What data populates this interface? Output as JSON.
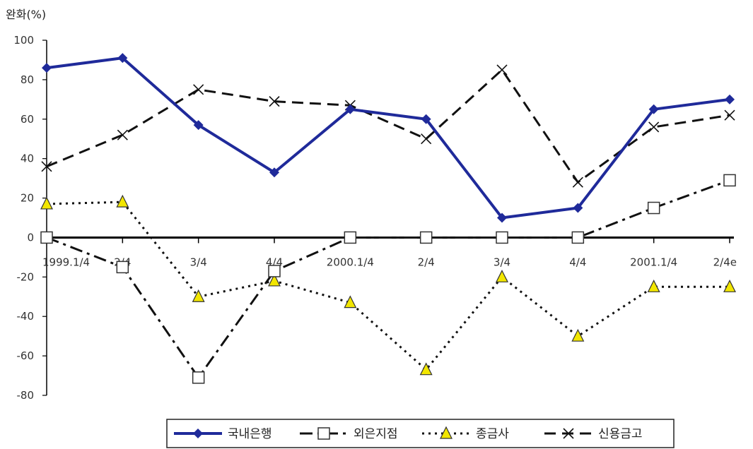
{
  "chart_data": {
    "type": "line",
    "ylabel": "완화(%)",
    "ylim": [
      -80,
      100
    ],
    "yticks": [
      100,
      80,
      60,
      40,
      20,
      0,
      -20,
      -40,
      -60,
      -80
    ],
    "categories": [
      "1999.1/4",
      "2/4",
      "3/4",
      "4/4",
      "2000.1/4",
      "2/4",
      "3/4",
      "4/4",
      "2001.1/4",
      "2/4e"
    ],
    "grid": false,
    "legend_position": "bottom",
    "series": [
      {
        "name": "국내은행",
        "color": "#1f2a9a",
        "style": "solid",
        "marker": "diamond",
        "values": [
          86,
          91,
          57,
          33,
          65,
          60,
          10,
          15,
          65,
          70
        ]
      },
      {
        "name": "외은지점",
        "color": "#111111",
        "style": "dashdot",
        "marker": "square",
        "values": [
          0,
          -15,
          -71,
          -17,
          0,
          0,
          0,
          0,
          15,
          29
        ]
      },
      {
        "name": "종금사",
        "color": "#111111",
        "style": "dotted",
        "marker": "triangle",
        "values": [
          17,
          18,
          -30,
          -22,
          -33,
          -67,
          -20,
          -50,
          -25,
          -25
        ]
      },
      {
        "name": "신용금고",
        "color": "#111111",
        "style": "longdash",
        "marker": "x",
        "values": [
          36,
          52,
          75,
          69,
          67,
          50,
          85,
          28,
          56,
          62
        ]
      }
    ]
  }
}
